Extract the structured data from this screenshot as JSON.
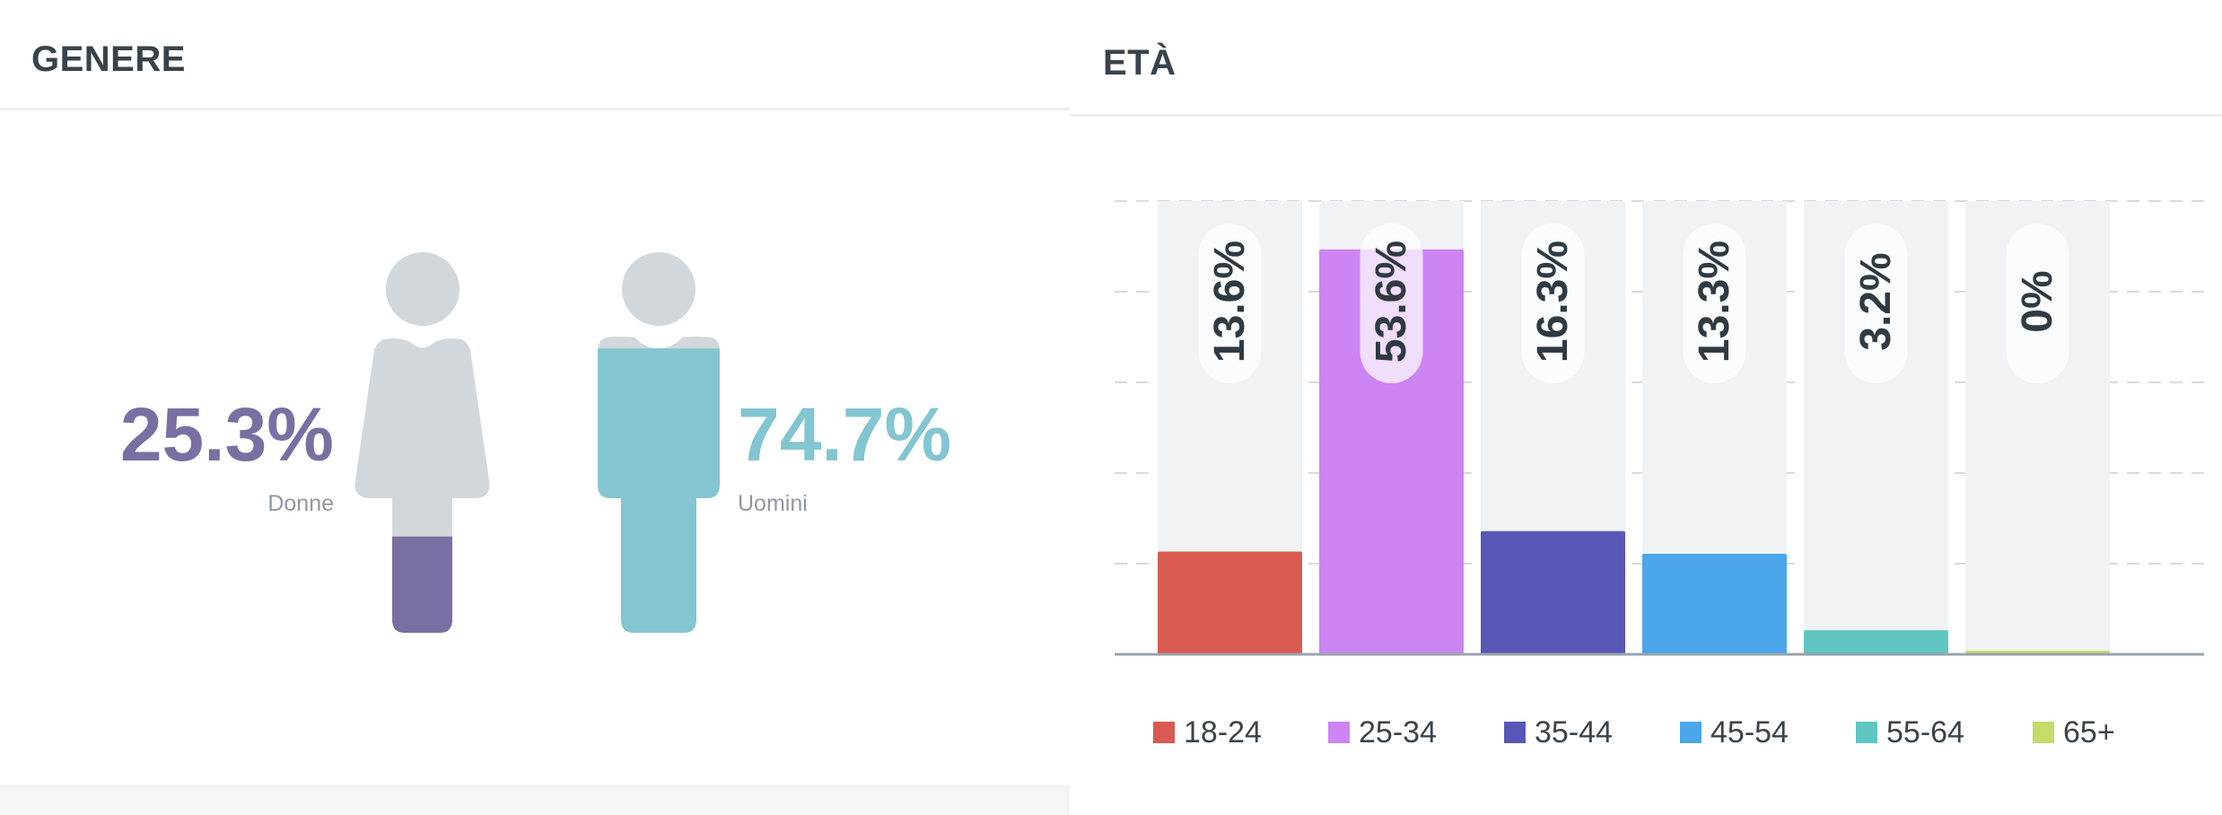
{
  "gender": {
    "title": "GENERE",
    "female": {
      "label": "Donne",
      "percent_text": "25.3%",
      "value": 25.3,
      "color": "#7a6fa2"
    },
    "male": {
      "label": "Uomini",
      "percent_text": "74.7%",
      "value": 74.7,
      "color": "#83c5d0"
    },
    "icons": [
      "female-figure-icon",
      "male-figure-icon"
    ],
    "empty_color": "#d2d7db"
  },
  "age": {
    "title": "ETÀ",
    "legend": [
      {
        "label": "18-24",
        "color": "#d95a51"
      },
      {
        "label": "25-34",
        "color": "#cc85f2"
      },
      {
        "label": "35-44",
        "color": "#5957b5"
      },
      {
        "label": "45-54",
        "color": "#4ba6ea"
      },
      {
        "label": "55-64",
        "color": "#5fc6c1"
      },
      {
        "label": "65+",
        "color": "#c4dc6a"
      }
    ]
  },
  "chart_data": [
    {
      "type": "bar",
      "title": "ETÀ",
      "categories": [
        "18-24",
        "25-34",
        "35-44",
        "45-54",
        "55-64",
        "65+"
      ],
      "values": [
        13.6,
        53.6,
        16.3,
        13.3,
        3.2,
        0
      ],
      "value_labels": [
        "13.6%",
        "53.6%",
        "16.3%",
        "13.3%",
        "3.2%",
        "0%"
      ],
      "colors": [
        "#d95a51",
        "#cc85f2",
        "#5957b5",
        "#4ba6ea",
        "#5fc6c1",
        "#c4dc6a"
      ],
      "ylim": [
        0,
        60
      ],
      "grid": true,
      "legend_position": "bottom"
    }
  ]
}
